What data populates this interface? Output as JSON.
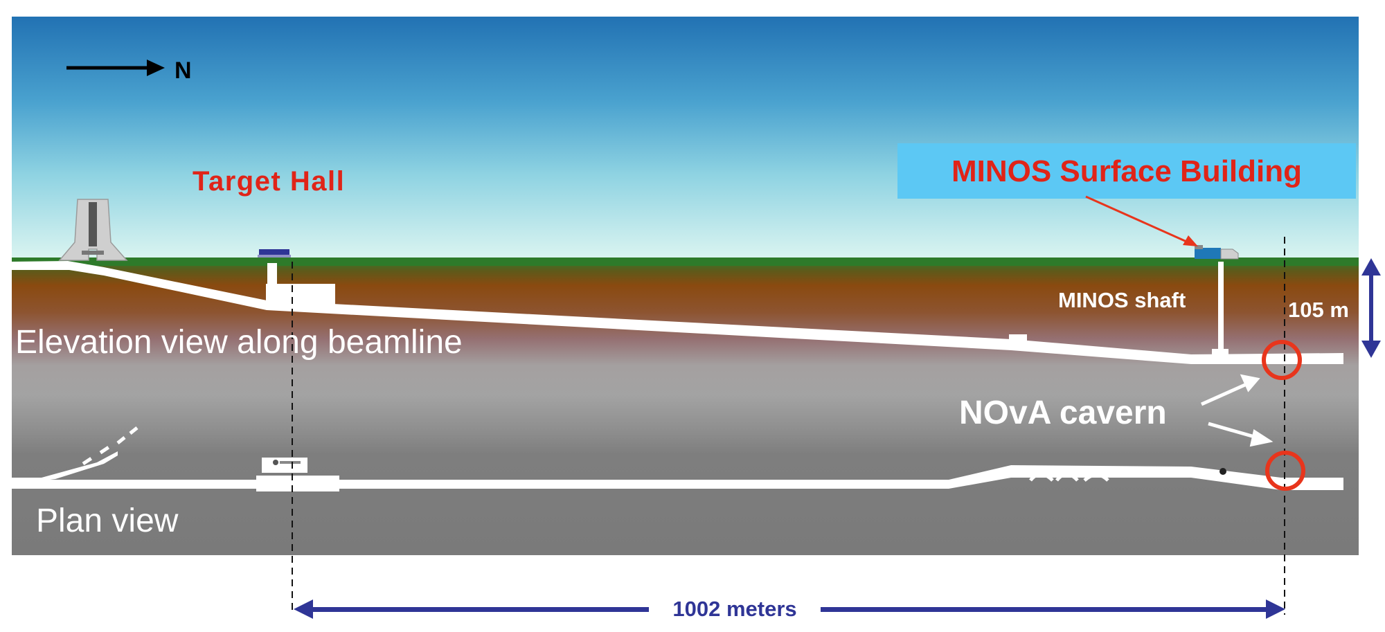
{
  "diagram": {
    "north": {
      "label": "N"
    },
    "target_hall": {
      "label": "Target Hall"
    },
    "minos_building": {
      "label": "MINOS Surface Building"
    },
    "minos_shaft": {
      "label": "MINOS shaft"
    },
    "depth": {
      "label": "105 m"
    },
    "elevation_view": {
      "label": "Elevation view along beamline"
    },
    "plan_view": {
      "label": "Plan view"
    },
    "nova_cavern": {
      "label": "NOvA cavern"
    },
    "distance": {
      "label": "1002 meters"
    }
  },
  "colors": {
    "sky_top": "#2674b5",
    "sky_mid": "#6dc0da",
    "sky_horizon": "#d8f4f0",
    "grass": "#2e7a2a",
    "soil_top": "#8a4a10",
    "rock_gray": "#a3a3a3",
    "plan_gray": "#7e7e7e",
    "tunnel": "#ffffff",
    "highlight_red": "#e8351c",
    "label_red": "#e02418",
    "building_banner": "#5cc8f4",
    "dimension_blue": "#2f3596"
  }
}
